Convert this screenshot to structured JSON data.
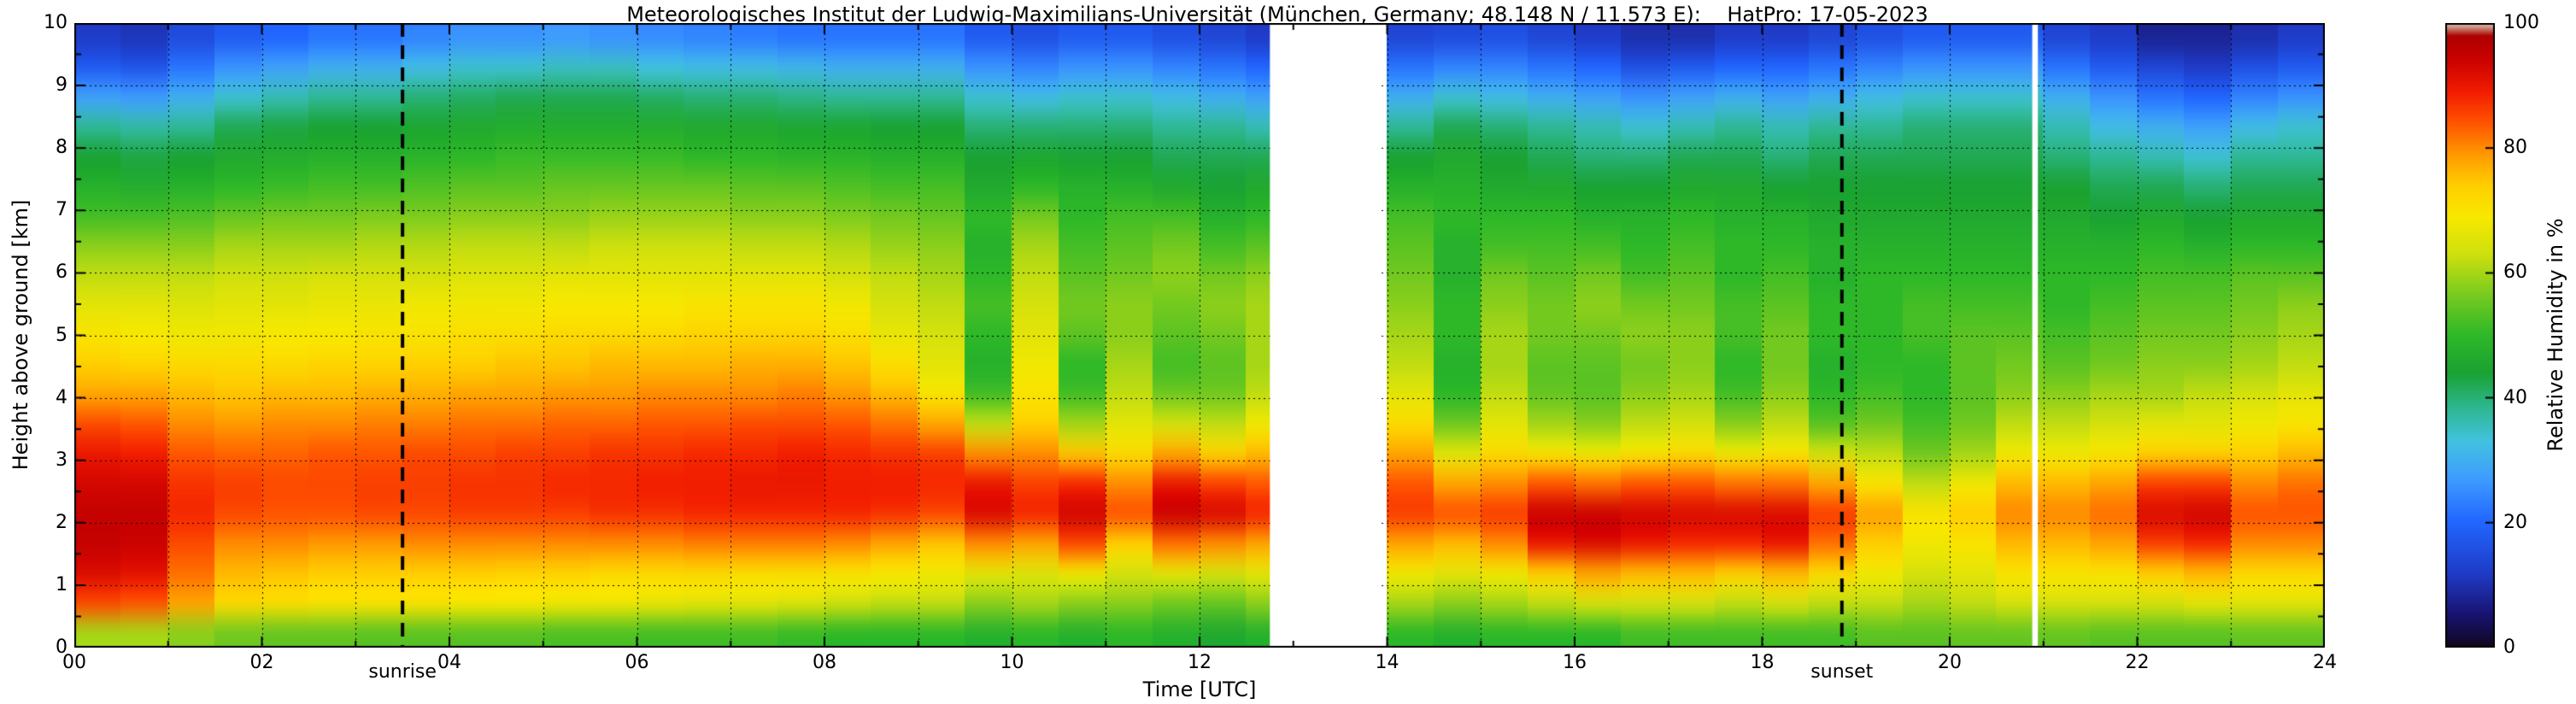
{
  "title": "Meteorologisches Institut der Ludwig-Maximilians-Universität (München, Germany; 48.148 N / 11.573 E):    HatPro: 17-05-2023",
  "chart_data": {
    "type": "heatmap",
    "xlabel": "Time [UTC]",
    "ylabel": "Height above ground [km]",
    "colorbar_label": "Relative Humidity in %",
    "xlim": [
      0,
      24
    ],
    "ylim": [
      0,
      10
    ],
    "value_range": [
      0,
      100
    ],
    "grid": "dotted, every 1 h and every 1 km",
    "legend_position": "colorbar-right",
    "x_ticks": [
      {
        "value": 0,
        "label": "00"
      },
      {
        "value": 2,
        "label": "02"
      },
      {
        "value": 4,
        "label": "04"
      },
      {
        "value": 6,
        "label": "06"
      },
      {
        "value": 8,
        "label": "08"
      },
      {
        "value": 10,
        "label": "10"
      },
      {
        "value": 12,
        "label": "12"
      },
      {
        "value": 14,
        "label": "14"
      },
      {
        "value": 16,
        "label": "16"
      },
      {
        "value": 18,
        "label": "18"
      },
      {
        "value": 20,
        "label": "20"
      },
      {
        "value": 22,
        "label": "22"
      },
      {
        "value": 24,
        "label": "24"
      }
    ],
    "y_ticks": [
      {
        "value": 0,
        "label": "0"
      },
      {
        "value": 1,
        "label": "1"
      },
      {
        "value": 2,
        "label": "2"
      },
      {
        "value": 3,
        "label": "3"
      },
      {
        "value": 4,
        "label": "4"
      },
      {
        "value": 5,
        "label": "5"
      },
      {
        "value": 6,
        "label": "6"
      },
      {
        "value": 7,
        "label": "7"
      },
      {
        "value": 8,
        "label": "8"
      },
      {
        "value": 9,
        "label": "9"
      },
      {
        "value": 10,
        "label": "10"
      }
    ],
    "colorbar_ticks": [
      {
        "value": 0,
        "label": "0"
      },
      {
        "value": 20,
        "label": "20"
      },
      {
        "value": 40,
        "label": "40"
      },
      {
        "value": 60,
        "label": "60"
      },
      {
        "value": 80,
        "label": "80"
      },
      {
        "value": 100,
        "label": "100"
      }
    ],
    "sun_events": [
      {
        "label": "sunrise",
        "time": 3.5
      },
      {
        "label": "sunset",
        "time": 18.85
      }
    ],
    "missing_intervals": [
      [
        12.75,
        13.92
      ],
      [
        20.88,
        20.94
      ]
    ],
    "colormap_stops": [
      [
        0,
        "#10071e"
      ],
      [
        5,
        "#18126e"
      ],
      [
        12,
        "#1f3cc8"
      ],
      [
        20,
        "#2166ff"
      ],
      [
        27,
        "#3e9cff"
      ],
      [
        33,
        "#41c2e0"
      ],
      [
        38,
        "#2fb896"
      ],
      [
        44,
        "#1aa233"
      ],
      [
        50,
        "#2eb828"
      ],
      [
        57,
        "#7ecc1e"
      ],
      [
        63,
        "#cfe00e"
      ],
      [
        69,
        "#f8e800"
      ],
      [
        74,
        "#ffcf00"
      ],
      [
        79,
        "#ff9900"
      ],
      [
        84,
        "#ff5500"
      ],
      [
        89,
        "#f21d00"
      ],
      [
        94,
        "#cc0200"
      ],
      [
        98,
        "#ae0000"
      ],
      [
        100,
        "#d8d2b8"
      ]
    ],
    "heights": [
      0,
      0.5,
      1,
      1.5,
      2,
      2.5,
      3,
      3.5,
      4,
      4.5,
      5,
      5.5,
      6,
      6.5,
      7,
      7.5,
      8,
      8.5,
      9,
      9.5,
      10
    ],
    "times": [
      0,
      0.5,
      1,
      1.5,
      2,
      2.5,
      3,
      3.5,
      4,
      4.5,
      5,
      5.5,
      6,
      6.5,
      7,
      7.5,
      8,
      8.5,
      9,
      9.5,
      10,
      10.5,
      11,
      11.5,
      12,
      12.5,
      13,
      13.5,
      14,
      14.5,
      15,
      15.5,
      16,
      16.5,
      17,
      17.5,
      18,
      18.5,
      19,
      19.5,
      20,
      20.5,
      21,
      21.5,
      22,
      22.5,
      23,
      23.5
    ],
    "humidity_percent": [
      [
        60,
        85,
        92,
        95,
        95,
        93,
        90,
        85,
        78,
        74,
        70,
        66,
        62,
        58,
        52,
        48,
        44,
        38,
        28,
        18,
        12
      ],
      [
        60,
        84,
        91,
        94,
        95,
        93,
        89,
        84,
        78,
        73,
        69,
        66,
        62,
        58,
        52,
        47,
        43,
        37,
        27,
        17,
        11
      ],
      [
        58,
        78,
        82,
        85,
        88,
        87,
        84,
        80,
        76,
        72,
        68,
        65,
        62,
        58,
        53,
        48,
        44,
        38,
        30,
        22,
        15
      ],
      [
        56,
        72,
        76,
        80,
        85,
        86,
        83,
        79,
        75,
        72,
        68,
        66,
        63,
        60,
        55,
        50,
        46,
        42,
        34,
        26,
        18
      ],
      [
        55,
        71,
        75,
        80,
        84,
        85,
        83,
        80,
        76,
        72,
        69,
        66,
        63,
        60,
        56,
        51,
        47,
        43,
        36,
        28,
        20
      ],
      [
        55,
        70,
        74,
        79,
        84,
        85,
        84,
        80,
        76,
        73,
        69,
        67,
        64,
        60,
        56,
        52,
        48,
        44,
        38,
        30,
        22
      ],
      [
        54,
        70,
        74,
        79,
        85,
        86,
        84,
        81,
        77,
        73,
        70,
        67,
        64,
        61,
        57,
        52,
        48,
        44,
        38,
        30,
        22
      ],
      [
        54,
        70,
        74,
        80,
        85,
        86,
        85,
        81,
        77,
        74,
        70,
        68,
        64,
        61,
        57,
        53,
        49,
        45,
        40,
        32,
        24
      ],
      [
        54,
        69,
        74,
        80,
        86,
        87,
        85,
        82,
        78,
        74,
        71,
        68,
        65,
        62,
        58,
        54,
        50,
        46,
        41,
        34,
        26
      ],
      [
        54,
        69,
        73,
        80,
        86,
        87,
        86,
        82,
        78,
        75,
        71,
        68,
        65,
        62,
        58,
        54,
        51,
        47,
        42,
        34,
        26
      ],
      [
        53,
        68,
        73,
        80,
        86,
        88,
        86,
        83,
        79,
        75,
        72,
        69,
        66,
        62,
        58,
        55,
        51,
        47,
        42,
        35,
        27
      ],
      [
        53,
        68,
        72,
        80,
        87,
        88,
        87,
        83,
        79,
        76,
        72,
        69,
        66,
        63,
        59,
        55,
        51,
        47,
        42,
        35,
        26
      ],
      [
        52,
        67,
        72,
        80,
        87,
        89,
        87,
        84,
        80,
        76,
        72,
        69,
        66,
        63,
        59,
        55,
        51,
        47,
        41,
        33,
        25
      ],
      [
        52,
        66,
        72,
        81,
        88,
        89,
        88,
        84,
        80,
        76,
        73,
        70,
        66,
        63,
        59,
        55,
        50,
        46,
        40,
        32,
        24
      ],
      [
        52,
        66,
        71,
        81,
        88,
        90,
        88,
        85,
        80,
        77,
        73,
        70,
        66,
        62,
        58,
        54,
        50,
        46,
        40,
        32,
        23
      ],
      [
        51,
        65,
        71,
        81,
        88,
        90,
        89,
        85,
        81,
        77,
        73,
        70,
        66,
        62,
        58,
        54,
        49,
        45,
        39,
        31,
        22
      ],
      [
        50,
        63,
        70,
        80,
        88,
        89,
        88,
        84,
        79,
        75,
        71,
        68,
        64,
        61,
        57,
        53,
        49,
        45,
        38,
        30,
        22
      ],
      [
        50,
        62,
        69,
        78,
        87,
        89,
        87,
        82,
        76,
        71,
        67,
        64,
        62,
        59,
        56,
        52,
        48,
        44,
        38,
        30,
        22
      ],
      [
        50,
        62,
        68,
        75,
        85,
        88,
        86,
        78,
        70,
        66,
        64,
        62,
        60,
        58,
        55,
        52,
        48,
        44,
        38,
        30,
        22
      ],
      [
        48,
        58,
        66,
        80,
        92,
        90,
        80,
        62,
        52,
        48,
        50,
        52,
        50,
        48,
        50,
        46,
        44,
        40,
        34,
        26,
        18
      ],
      [
        50,
        60,
        65,
        78,
        88,
        86,
        80,
        74,
        70,
        68,
        66,
        64,
        62,
        60,
        56,
        50,
        45,
        40,
        32,
        24,
        16
      ],
      [
        48,
        58,
        68,
        85,
        93,
        88,
        75,
        60,
        52,
        50,
        54,
        56,
        54,
        52,
        50,
        48,
        44,
        40,
        34,
        26,
        18
      ],
      [
        50,
        58,
        64,
        74,
        84,
        80,
        72,
        66,
        62,
        60,
        58,
        58,
        56,
        54,
        52,
        48,
        44,
        40,
        34,
        26,
        18
      ],
      [
        48,
        56,
        66,
        82,
        94,
        90,
        78,
        64,
        56,
        52,
        54,
        56,
        58,
        56,
        52,
        46,
        42,
        38,
        32,
        24,
        16
      ],
      [
        46,
        55,
        64,
        80,
        92,
        86,
        74,
        62,
        56,
        54,
        56,
        58,
        56,
        52,
        48,
        44,
        42,
        38,
        30,
        22,
        14
      ],
      [
        48,
        58,
        66,
        78,
        88,
        84,
        76,
        68,
        62,
        60,
        60,
        60,
        58,
        54,
        50,
        46,
        42,
        36,
        28,
        20,
        12
      ],
      null,
      null,
      [
        50,
        60,
        68,
        78,
        86,
        84,
        78,
        72,
        66,
        62,
        60,
        58,
        56,
        54,
        52,
        48,
        44,
        38,
        30,
        22,
        14
      ],
      [
        48,
        58,
        66,
        76,
        84,
        78,
        66,
        56,
        50,
        48,
        50,
        50,
        48,
        48,
        50,
        48,
        46,
        42,
        34,
        24,
        15
      ],
      [
        50,
        60,
        68,
        80,
        86,
        80,
        72,
        66,
        62,
        60,
        60,
        58,
        56,
        52,
        50,
        46,
        44,
        40,
        32,
        24,
        16
      ],
      [
        50,
        62,
        74,
        90,
        94,
        84,
        70,
        60,
        55,
        54,
        56,
        56,
        54,
        52,
        50,
        46,
        42,
        38,
        30,
        22,
        14
      ],
      [
        50,
        64,
        78,
        92,
        94,
        82,
        68,
        58,
        54,
        54,
        56,
        58,
        56,
        52,
        48,
        44,
        40,
        36,
        28,
        20,
        12
      ],
      [
        52,
        64,
        76,
        90,
        93,
        84,
        70,
        62,
        58,
        56,
        58,
        56,
        52,
        50,
        48,
        44,
        40,
        34,
        26,
        16,
        10
      ],
      [
        52,
        64,
        76,
        88,
        92,
        84,
        72,
        64,
        60,
        58,
        58,
        56,
        54,
        52,
        50,
        46,
        42,
        36,
        28,
        18,
        10
      ],
      [
        52,
        62,
        74,
        88,
        92,
        82,
        68,
        58,
        52,
        50,
        52,
        52,
        50,
        50,
        48,
        46,
        42,
        38,
        30,
        20,
        12
      ],
      [
        52,
        64,
        76,
        90,
        92,
        82,
        70,
        62,
        58,
        56,
        56,
        54,
        52,
        50,
        48,
        44,
        40,
        36,
        28,
        20,
        12
      ],
      [
        52,
        62,
        72,
        82,
        86,
        78,
        64,
        54,
        50,
        48,
        50,
        50,
        48,
        48,
        46,
        44,
        42,
        38,
        30,
        22,
        14
      ],
      [
        54,
        62,
        68,
        74,
        78,
        70,
        62,
        56,
        52,
        50,
        50,
        50,
        50,
        48,
        46,
        44,
        42,
        38,
        32,
        24,
        16
      ],
      [
        54,
        60,
        64,
        68,
        70,
        62,
        56,
        52,
        50,
        50,
        52,
        52,
        50,
        48,
        46,
        44,
        42,
        40,
        34,
        26,
        18
      ],
      [
        55,
        62,
        66,
        70,
        74,
        68,
        60,
        56,
        54,
        54,
        54,
        52,
        50,
        48,
        46,
        44,
        42,
        40,
        34,
        26,
        18
      ],
      [
        55,
        64,
        70,
        76,
        80,
        76,
        68,
        62,
        58,
        56,
        54,
        52,
        50,
        48,
        46,
        44,
        42,
        40,
        34,
        26,
        18
      ],
      [
        55,
        64,
        70,
        76,
        80,
        76,
        68,
        62,
        58,
        54,
        52,
        50,
        50,
        48,
        46,
        44,
        40,
        36,
        30,
        22,
        14
      ],
      [
        54,
        64,
        70,
        78,
        82,
        78,
        70,
        64,
        60,
        56,
        54,
        52,
        50,
        48,
        44,
        42,
        38,
        32,
        26,
        18,
        12
      ],
      [
        54,
        64,
        74,
        86,
        92,
        86,
        74,
        66,
        60,
        58,
        56,
        54,
        52,
        50,
        46,
        42,
        36,
        30,
        22,
        14,
        8
      ],
      [
        54,
        66,
        76,
        88,
        93,
        86,
        74,
        66,
        62,
        58,
        56,
        54,
        52,
        48,
        44,
        40,
        34,
        28,
        20,
        12,
        8
      ],
      [
        55,
        66,
        72,
        80,
        84,
        80,
        74,
        68,
        64,
        60,
        58,
        56,
        54,
        50,
        46,
        42,
        38,
        32,
        24,
        16,
        10
      ],
      [
        55,
        66,
        72,
        80,
        84,
        82,
        76,
        70,
        66,
        62,
        60,
        58,
        54,
        50,
        46,
        42,
        38,
        34,
        26,
        18,
        12
      ]
    ]
  }
}
